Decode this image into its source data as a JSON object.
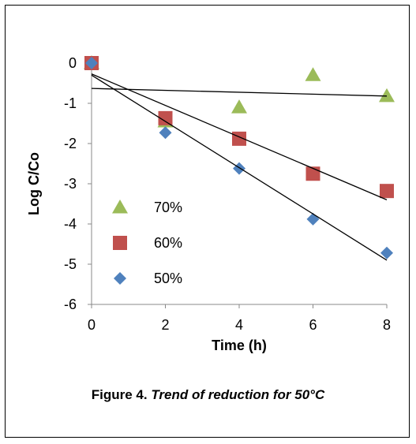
{
  "caption": {
    "label": "Figure 4.",
    "text": "Trend of reduction for 50°C"
  },
  "chart_data": {
    "type": "scatter",
    "title": "",
    "xlabel": "Time (h)",
    "ylabel": "Log C/Co",
    "xlim": [
      0,
      8
    ],
    "ylim": [
      -6,
      0
    ],
    "x_ticks": [
      0,
      2,
      4,
      6,
      8
    ],
    "y_ticks": [
      0,
      -1,
      -2,
      -3,
      -4,
      -5,
      -6
    ],
    "grid": false,
    "legend_position": "left",
    "series": [
      {
        "name": "70%",
        "marker": "triangle",
        "color": "#9bbb59",
        "points": [
          [
            0,
            0
          ],
          [
            2,
            -1.45
          ],
          [
            4,
            -1.1
          ],
          [
            6,
            -0.3
          ],
          [
            8,
            -0.82
          ]
        ],
        "trendline": [
          [
            0,
            -0.63
          ],
          [
            8,
            -0.82
          ]
        ]
      },
      {
        "name": "60%",
        "marker": "square",
        "color": "#c0504d",
        "points": [
          [
            0,
            0
          ],
          [
            2,
            -1.37
          ],
          [
            4,
            -1.88
          ],
          [
            6,
            -2.75
          ],
          [
            8,
            -3.18
          ]
        ],
        "trendline": [
          [
            0,
            -0.27
          ],
          [
            8,
            -3.4
          ]
        ]
      },
      {
        "name": "50%",
        "marker": "diamond",
        "color": "#4f81bd",
        "points": [
          [
            0,
            0
          ],
          [
            2,
            -1.73
          ],
          [
            4,
            -2.62
          ],
          [
            6,
            -3.88
          ],
          [
            8,
            -4.72
          ]
        ],
        "trendline": [
          [
            0,
            -0.3
          ],
          [
            8,
            -4.9
          ]
        ]
      }
    ]
  }
}
